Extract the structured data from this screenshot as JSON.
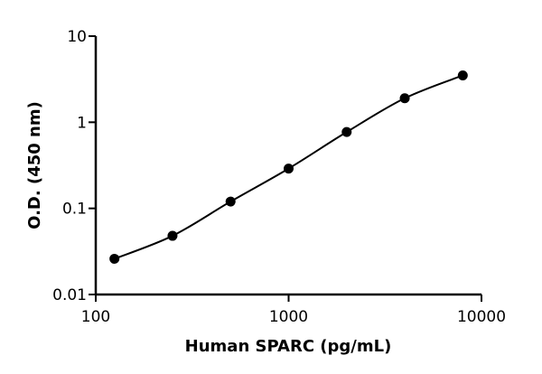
{
  "chart_data": {
    "type": "scatter",
    "x_label": "Human SPARC (pg/mL)",
    "y_label": "O.D. (450 nm)",
    "x_scale": "log",
    "y_scale": "log",
    "xlim": [
      100,
      10000
    ],
    "xticks": [
      100,
      1000,
      10000
    ],
    "ylim": [
      0.01,
      10
    ],
    "yticks": [
      0.01,
      0.1,
      1,
      10
    ],
    "grid": false,
    "series": [
      {
        "name": "Human SPARC",
        "color": "#000000",
        "line": true,
        "x": [
          125,
          250,
          500,
          1000,
          2000,
          4000,
          8000
        ],
        "values": [
          0.026,
          0.048,
          0.12,
          0.29,
          0.77,
          1.9,
          3.5
        ]
      }
    ]
  }
}
